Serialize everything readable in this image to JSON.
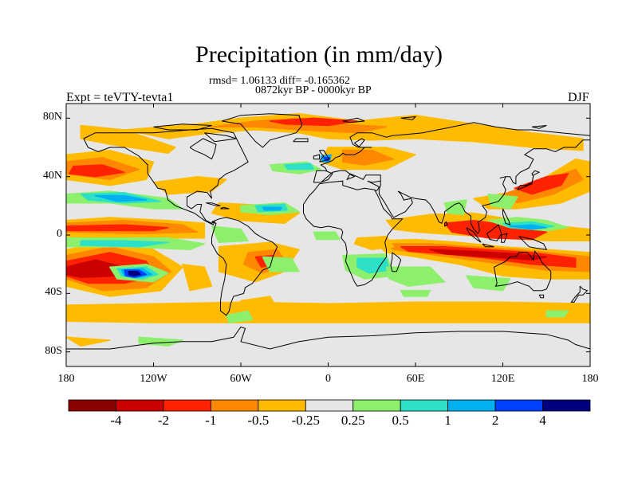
{
  "title": "Precipitation (in mm/day)",
  "subtitle_stats": "rmsd= 1.06133 diff= -0.165362",
  "subtitle_period": "0872kyr BP - 0000kyr BP",
  "experiment_label": "Expt = teVTY-tevta1",
  "season_label": "DJF",
  "map": {
    "projection": "cylindrical equidistant",
    "lon_range": [
      -180,
      180
    ],
    "lat_range": [
      -90,
      90
    ],
    "x_ticks": [
      {
        "lon": -180,
        "label": "180"
      },
      {
        "lon": -120,
        "label": "120W"
      },
      {
        "lon": -60,
        "label": "60W"
      },
      {
        "lon": 0,
        "label": "0"
      },
      {
        "lon": 60,
        "label": "60E"
      },
      {
        "lon": 120,
        "label": "120E"
      },
      {
        "lon": 180,
        "label": "180"
      }
    ],
    "y_ticks": [
      {
        "lat": 80,
        "label": "80N"
      },
      {
        "lat": 40,
        "label": "40N"
      },
      {
        "lat": 0,
        "label": "0"
      },
      {
        "lat": -40,
        "label": "40S"
      },
      {
        "lat": -80,
        "label": "80S"
      }
    ],
    "background_color": "#e6e6e6"
  },
  "colorbar": {
    "colors": [
      "#8b0000",
      "#cc0000",
      "#ff2200",
      "#ff8800",
      "#ffbb00",
      "#e6e6e6",
      "#8cf06c",
      "#2de0c8",
      "#00b0f0",
      "#0040ff",
      "#000080"
    ],
    "labels": [
      "-4",
      "-2",
      "-1",
      "-0.5",
      "-0.25",
      "0.25",
      "0.5",
      "1",
      "2",
      "4"
    ]
  },
  "colors": {
    "orange": "#ffbb00",
    "dark_orange": "#ff8800",
    "red": "#ff2200",
    "dark_red": "#cc0000",
    "maroon": "#8b0000",
    "light_green": "#8cf06c",
    "cyan": "#2de0c8",
    "sky_blue": "#00b0f0",
    "blue": "#0040ff",
    "navy": "#000080",
    "gray": "#e6e6e6",
    "coast": "#000000"
  }
}
